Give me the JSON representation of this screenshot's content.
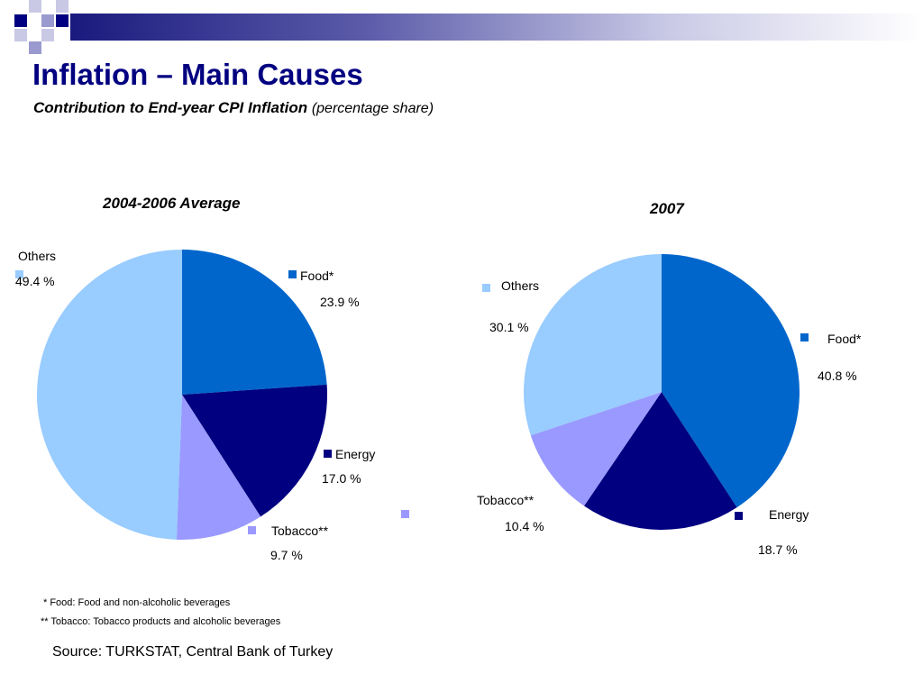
{
  "header": {
    "title": "Inflation – Main Causes",
    "subtitle": "Contribution to End-year CPI Inflation",
    "subtitle_note": "(percentage share)"
  },
  "chart_data": [
    {
      "type": "pie",
      "title": "2004-2006 Average",
      "series": [
        {
          "label": "Food*",
          "value": 23.9,
          "value_label": "23.9 %",
          "color": "#0066cc"
        },
        {
          "label": "Energy",
          "value": 17.0,
          "value_label": "17.0 %",
          "color": "#000080"
        },
        {
          "label": "Tobacco**",
          "value": 9.7,
          "value_label": "9.7 %",
          "color": "#9999ff"
        },
        {
          "label": "Others",
          "value": 49.4,
          "value_label": "49.4 %",
          "color": "#99ccff"
        }
      ]
    },
    {
      "type": "pie",
      "title": "2007",
      "series": [
        {
          "label": "Food*",
          "value": 40.8,
          "value_label": "40.8 %",
          "color": "#0066cc"
        },
        {
          "label": "Energy",
          "value": 18.7,
          "value_label": "18.7 %",
          "color": "#000080"
        },
        {
          "label": "Tobacco**",
          "value": 10.4,
          "value_label": "10.4 %",
          "color": "#9999ff"
        },
        {
          "label": "Others",
          "value": 30.1,
          "value_label": "30.1 %",
          "color": "#99ccff"
        }
      ]
    }
  ],
  "footnotes": {
    "food": "* Food: Food and non-alcoholic beverages",
    "tobacco": "** Tobacco: Tobacco products and alcoholic beverages"
  },
  "source": "Source: TURKSTAT, Central Bank of Turkey"
}
